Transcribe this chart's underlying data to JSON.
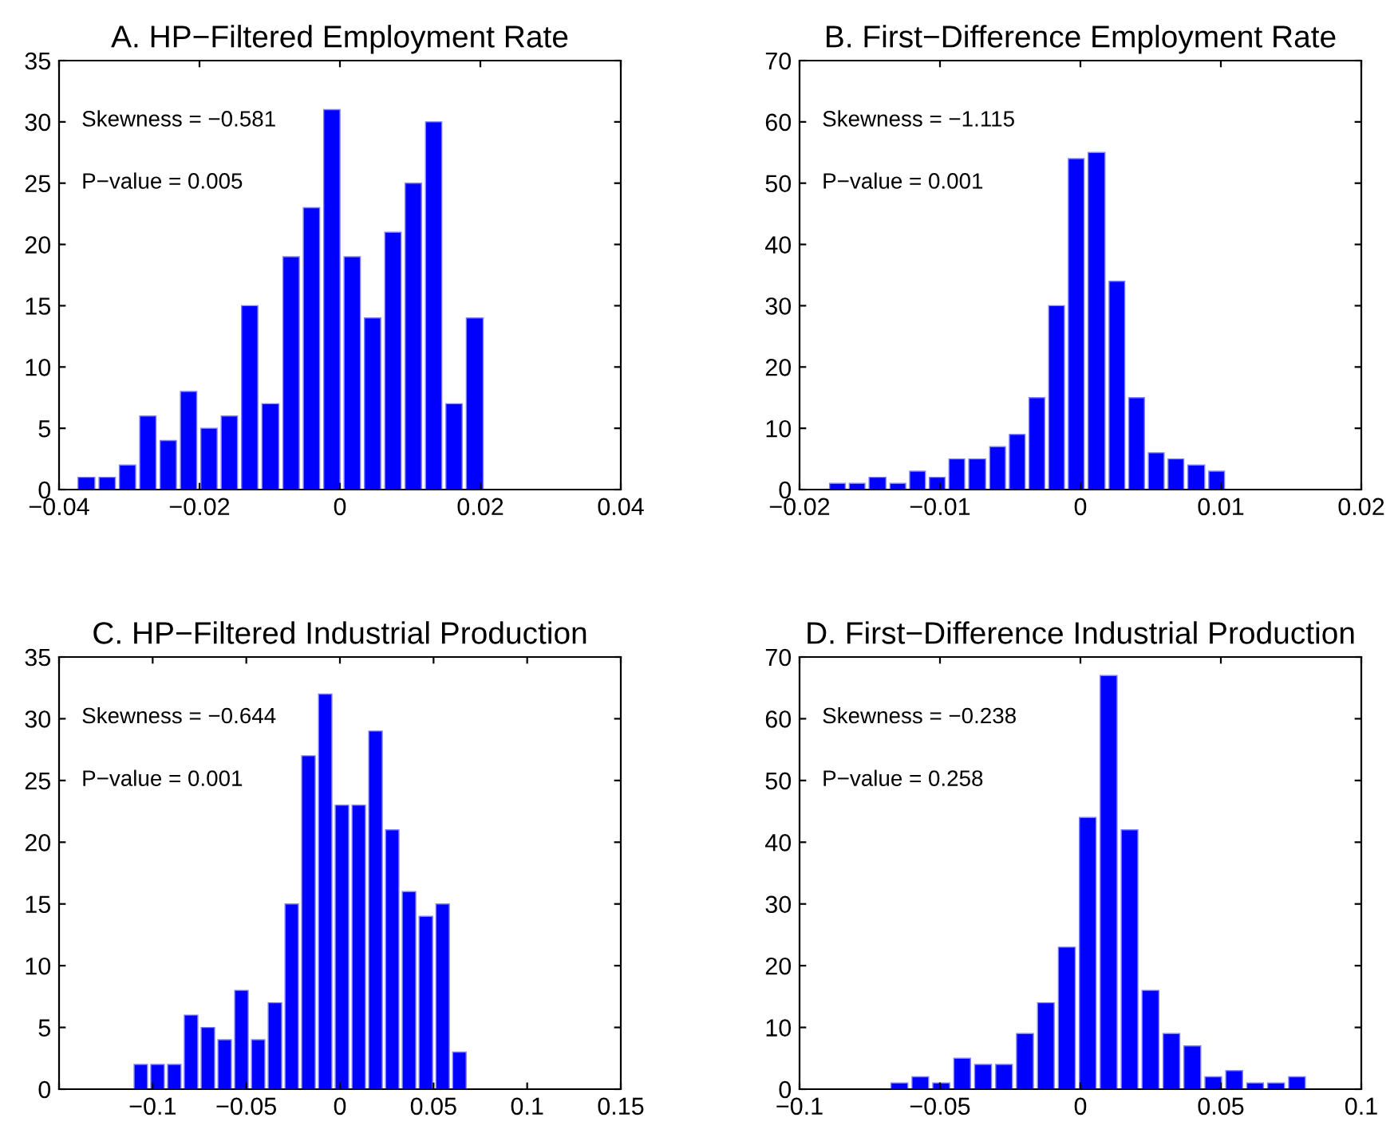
{
  "chart_data": [
    {
      "type": "histogram",
      "title": "A. HP−Filtered Employment Rate",
      "color": "#0000ff",
      "bins": [
        -0.0376,
        -0.0346,
        -0.0317,
        -0.0288,
        -0.0259,
        -0.023,
        -0.0201,
        -0.0172,
        -0.0143,
        -0.0114,
        -0.0084,
        -0.0055,
        -0.0026,
        0.0003,
        0.0032,
        0.0061,
        0.009,
        0.0119,
        0.0148,
        0.0177,
        0.0207
      ],
      "values": [
        1,
        1,
        2,
        6,
        4,
        8,
        5,
        6,
        15,
        7,
        19,
        23,
        31,
        19,
        14,
        21,
        25,
        30,
        7,
        14
      ],
      "xlim": [
        -0.04,
        0.04
      ],
      "xticks": [
        -0.04,
        -0.02,
        0,
        0.02,
        0.04
      ],
      "ylim": [
        0,
        35
      ],
      "yticks": [
        0,
        5,
        10,
        15,
        20,
        25,
        30,
        35
      ],
      "annotations": [
        "Skewness = −0.581",
        "P−value = 0.005"
      ],
      "grid": false
    },
    {
      "type": "histogram",
      "title": "B. First−Difference Employment Rate",
      "color": "#0000ff",
      "bins": [
        -0.018,
        -0.0166,
        -0.0152,
        -0.0137,
        -0.0123,
        -0.0109,
        -0.0095,
        -0.0081,
        -0.0066,
        -0.0052,
        -0.0038,
        -0.0024,
        -0.001,
        0.0004,
        0.0019,
        0.0033,
        0.0047,
        0.0061,
        0.0075,
        0.009,
        0.0104
      ],
      "values": [
        1,
        1,
        2,
        1,
        3,
        2,
        5,
        5,
        7,
        9,
        15,
        30,
        54,
        55,
        34,
        15,
        6,
        5,
        4,
        3
      ],
      "xlim": [
        -0.02,
        0.02
      ],
      "xticks": [
        -0.02,
        -0.01,
        0,
        0.01,
        0.02
      ],
      "ylim": [
        0,
        70
      ],
      "yticks": [
        0,
        10,
        20,
        30,
        40,
        50,
        60,
        70
      ],
      "annotations": [
        "Skewness = −1.115",
        "P−value = 0.001"
      ],
      "grid": false
    },
    {
      "type": "histogram",
      "title": "C. HP−Filtered Industrial Production",
      "color": "#0000ff",
      "bins": [
        -0.1108,
        -0.1019,
        -0.0929,
        -0.084,
        -0.075,
        -0.066,
        -0.0571,
        -0.0481,
        -0.0392,
        -0.0302,
        -0.0213,
        -0.0123,
        -0.0034,
        0.0056,
        0.0145,
        0.0235,
        0.0324,
        0.0414,
        0.0504,
        0.0593,
        0.0683
      ],
      "values": [
        2,
        2,
        2,
        6,
        5,
        4,
        8,
        4,
        7,
        15,
        27,
        32,
        23,
        23,
        29,
        21,
        16,
        14,
        15,
        3
      ],
      "xlim": [
        -0.15,
        0.15
      ],
      "xticks": [
        {
          "value": -0.15,
          "label": null
        },
        -0.1,
        -0.05,
        0,
        0.05,
        0.1,
        0.15
      ],
      "ylim": [
        0,
        35
      ],
      "yticks": [
        0,
        5,
        10,
        15,
        20,
        25,
        30,
        35
      ],
      "annotations": [
        "Skewness = −0.644",
        "P−value = 0.001"
      ],
      "grid": false
    },
    {
      "type": "histogram",
      "title": "D. First−Difference Industrial Production",
      "color": "#0000ff",
      "bins": [
        -0.0682,
        -0.0607,
        -0.0533,
        -0.0458,
        -0.0384,
        -0.0309,
        -0.0235,
        -0.016,
        -0.0086,
        -0.0011,
        0.0063,
        0.0138,
        0.0212,
        0.0287,
        0.0361,
        0.0436,
        0.051,
        0.0585,
        0.0659,
        0.0734,
        0.0808
      ],
      "values": [
        1,
        2,
        1,
        5,
        4,
        4,
        9,
        14,
        23,
        44,
        67,
        42,
        16,
        9,
        7,
        2,
        3,
        1,
        1,
        2
      ],
      "xlim": [
        -0.1,
        0.1
      ],
      "xticks": [
        -0.1,
        -0.05,
        0,
        0.05,
        0.1
      ],
      "ylim": [
        0,
        70
      ],
      "yticks": [
        0,
        10,
        20,
        30,
        40,
        50,
        60,
        70
      ],
      "annotations": [
        "Skewness = −0.238",
        "P−value = 0.258"
      ],
      "grid": false
    }
  ]
}
